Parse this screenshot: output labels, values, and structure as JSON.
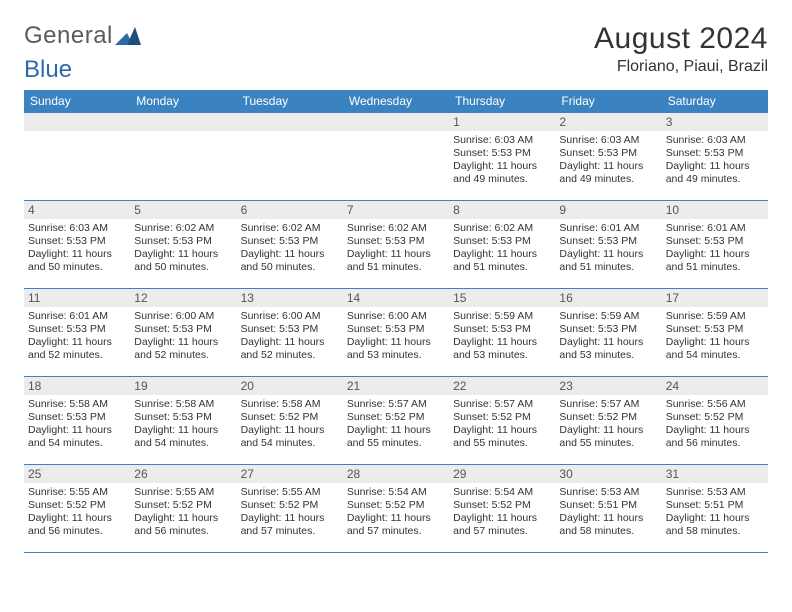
{
  "logo": {
    "text1": "General",
    "text2": "Blue"
  },
  "title": "August 2024",
  "subtitle": "Floriano, Piaui, Brazil",
  "colors": {
    "header_bg": "#3b83c0",
    "header_fg": "#ffffff",
    "daynum_bg": "#ececec",
    "border": "#3b83c0",
    "text": "#333333",
    "logo_gray": "#5b5b5b",
    "logo_blue": "#2f6aa8"
  },
  "day_headers": [
    "Sunday",
    "Monday",
    "Tuesday",
    "Wednesday",
    "Thursday",
    "Friday",
    "Saturday"
  ],
  "weeks": [
    [
      null,
      null,
      null,
      null,
      {
        "n": "1",
        "sunrise": "Sunrise: 6:03 AM",
        "sunset": "Sunset: 5:53 PM",
        "dl1": "Daylight: 11 hours",
        "dl2": "and 49 minutes."
      },
      {
        "n": "2",
        "sunrise": "Sunrise: 6:03 AM",
        "sunset": "Sunset: 5:53 PM",
        "dl1": "Daylight: 11 hours",
        "dl2": "and 49 minutes."
      },
      {
        "n": "3",
        "sunrise": "Sunrise: 6:03 AM",
        "sunset": "Sunset: 5:53 PM",
        "dl1": "Daylight: 11 hours",
        "dl2": "and 49 minutes."
      }
    ],
    [
      {
        "n": "4",
        "sunrise": "Sunrise: 6:03 AM",
        "sunset": "Sunset: 5:53 PM",
        "dl1": "Daylight: 11 hours",
        "dl2": "and 50 minutes."
      },
      {
        "n": "5",
        "sunrise": "Sunrise: 6:02 AM",
        "sunset": "Sunset: 5:53 PM",
        "dl1": "Daylight: 11 hours",
        "dl2": "and 50 minutes."
      },
      {
        "n": "6",
        "sunrise": "Sunrise: 6:02 AM",
        "sunset": "Sunset: 5:53 PM",
        "dl1": "Daylight: 11 hours",
        "dl2": "and 50 minutes."
      },
      {
        "n": "7",
        "sunrise": "Sunrise: 6:02 AM",
        "sunset": "Sunset: 5:53 PM",
        "dl1": "Daylight: 11 hours",
        "dl2": "and 51 minutes."
      },
      {
        "n": "8",
        "sunrise": "Sunrise: 6:02 AM",
        "sunset": "Sunset: 5:53 PM",
        "dl1": "Daylight: 11 hours",
        "dl2": "and 51 minutes."
      },
      {
        "n": "9",
        "sunrise": "Sunrise: 6:01 AM",
        "sunset": "Sunset: 5:53 PM",
        "dl1": "Daylight: 11 hours",
        "dl2": "and 51 minutes."
      },
      {
        "n": "10",
        "sunrise": "Sunrise: 6:01 AM",
        "sunset": "Sunset: 5:53 PM",
        "dl1": "Daylight: 11 hours",
        "dl2": "and 51 minutes."
      }
    ],
    [
      {
        "n": "11",
        "sunrise": "Sunrise: 6:01 AM",
        "sunset": "Sunset: 5:53 PM",
        "dl1": "Daylight: 11 hours",
        "dl2": "and 52 minutes."
      },
      {
        "n": "12",
        "sunrise": "Sunrise: 6:00 AM",
        "sunset": "Sunset: 5:53 PM",
        "dl1": "Daylight: 11 hours",
        "dl2": "and 52 minutes."
      },
      {
        "n": "13",
        "sunrise": "Sunrise: 6:00 AM",
        "sunset": "Sunset: 5:53 PM",
        "dl1": "Daylight: 11 hours",
        "dl2": "and 52 minutes."
      },
      {
        "n": "14",
        "sunrise": "Sunrise: 6:00 AM",
        "sunset": "Sunset: 5:53 PM",
        "dl1": "Daylight: 11 hours",
        "dl2": "and 53 minutes."
      },
      {
        "n": "15",
        "sunrise": "Sunrise: 5:59 AM",
        "sunset": "Sunset: 5:53 PM",
        "dl1": "Daylight: 11 hours",
        "dl2": "and 53 minutes."
      },
      {
        "n": "16",
        "sunrise": "Sunrise: 5:59 AM",
        "sunset": "Sunset: 5:53 PM",
        "dl1": "Daylight: 11 hours",
        "dl2": "and 53 minutes."
      },
      {
        "n": "17",
        "sunrise": "Sunrise: 5:59 AM",
        "sunset": "Sunset: 5:53 PM",
        "dl1": "Daylight: 11 hours",
        "dl2": "and 54 minutes."
      }
    ],
    [
      {
        "n": "18",
        "sunrise": "Sunrise: 5:58 AM",
        "sunset": "Sunset: 5:53 PM",
        "dl1": "Daylight: 11 hours",
        "dl2": "and 54 minutes."
      },
      {
        "n": "19",
        "sunrise": "Sunrise: 5:58 AM",
        "sunset": "Sunset: 5:53 PM",
        "dl1": "Daylight: 11 hours",
        "dl2": "and 54 minutes."
      },
      {
        "n": "20",
        "sunrise": "Sunrise: 5:58 AM",
        "sunset": "Sunset: 5:52 PM",
        "dl1": "Daylight: 11 hours",
        "dl2": "and 54 minutes."
      },
      {
        "n": "21",
        "sunrise": "Sunrise: 5:57 AM",
        "sunset": "Sunset: 5:52 PM",
        "dl1": "Daylight: 11 hours",
        "dl2": "and 55 minutes."
      },
      {
        "n": "22",
        "sunrise": "Sunrise: 5:57 AM",
        "sunset": "Sunset: 5:52 PM",
        "dl1": "Daylight: 11 hours",
        "dl2": "and 55 minutes."
      },
      {
        "n": "23",
        "sunrise": "Sunrise: 5:57 AM",
        "sunset": "Sunset: 5:52 PM",
        "dl1": "Daylight: 11 hours",
        "dl2": "and 55 minutes."
      },
      {
        "n": "24",
        "sunrise": "Sunrise: 5:56 AM",
        "sunset": "Sunset: 5:52 PM",
        "dl1": "Daylight: 11 hours",
        "dl2": "and 56 minutes."
      }
    ],
    [
      {
        "n": "25",
        "sunrise": "Sunrise: 5:55 AM",
        "sunset": "Sunset: 5:52 PM",
        "dl1": "Daylight: 11 hours",
        "dl2": "and 56 minutes."
      },
      {
        "n": "26",
        "sunrise": "Sunrise: 5:55 AM",
        "sunset": "Sunset: 5:52 PM",
        "dl1": "Daylight: 11 hours",
        "dl2": "and 56 minutes."
      },
      {
        "n": "27",
        "sunrise": "Sunrise: 5:55 AM",
        "sunset": "Sunset: 5:52 PM",
        "dl1": "Daylight: 11 hours",
        "dl2": "and 57 minutes."
      },
      {
        "n": "28",
        "sunrise": "Sunrise: 5:54 AM",
        "sunset": "Sunset: 5:52 PM",
        "dl1": "Daylight: 11 hours",
        "dl2": "and 57 minutes."
      },
      {
        "n": "29",
        "sunrise": "Sunrise: 5:54 AM",
        "sunset": "Sunset: 5:52 PM",
        "dl1": "Daylight: 11 hours",
        "dl2": "and 57 minutes."
      },
      {
        "n": "30",
        "sunrise": "Sunrise: 5:53 AM",
        "sunset": "Sunset: 5:51 PM",
        "dl1": "Daylight: 11 hours",
        "dl2": "and 58 minutes."
      },
      {
        "n": "31",
        "sunrise": "Sunrise: 5:53 AM",
        "sunset": "Sunset: 5:51 PM",
        "dl1": "Daylight: 11 hours",
        "dl2": "and 58 minutes."
      }
    ]
  ]
}
